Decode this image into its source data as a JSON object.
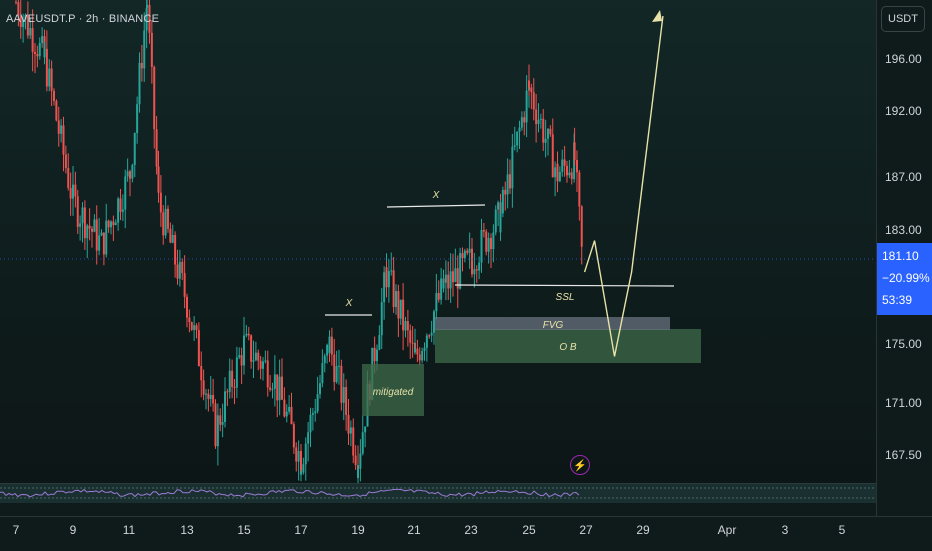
{
  "header": {
    "symbol_line": "AAVEUSDT.P · 2h · BINANCE"
  },
  "price_axis": {
    "currency": "USDT",
    "ticks": [
      "196.00",
      "192.00",
      "187.00",
      "183.00",
      "175.00",
      "171.00",
      "167.50"
    ],
    "last_price": {
      "price": "181.10",
      "change": "−20.99%",
      "countdown": "53:39"
    }
  },
  "time_axis": {
    "ticks": [
      "7",
      "9",
      "11",
      "13",
      "15",
      "17",
      "19",
      "21",
      "23",
      "25",
      "27",
      "29",
      "Apr",
      "3",
      "5"
    ]
  },
  "annotations": {
    "x_high_left": "X",
    "x_high_right": "X",
    "ssl": "SSL",
    "fvg": "FVG",
    "ob": "O B",
    "mitigated": "mitigated"
  },
  "icons": {
    "alert": "lightning-bolt-icon"
  },
  "colors": {
    "bull": "#26a69a",
    "bear": "#ef5350",
    "last_price": "#2962ff",
    "projection": "#e6e2a8",
    "zone_green": "#3d6b4a",
    "zone_gray": "#5a6070"
  },
  "chart_data": {
    "type": "candlestick",
    "symbol": "AAVEUSDT.P",
    "interval": "2h",
    "exchange": "BINANCE",
    "last_price": 181.1,
    "change_pct": -20.99,
    "y_ticks": [
      196.0,
      192.0,
      187.0,
      183.0,
      175.0,
      171.0,
      167.5
    ],
    "x_ticks": [
      "7",
      "9",
      "11",
      "13",
      "15",
      "17",
      "19",
      "21",
      "23",
      "25",
      "27",
      "29",
      "Apr",
      "3",
      "5"
    ],
    "swing_path": [
      [
        7,
        200
      ],
      [
        8,
        196
      ],
      [
        9,
        186
      ],
      [
        10,
        183
      ],
      [
        11,
        188
      ],
      [
        11.6,
        200
      ],
      [
        12,
        186
      ],
      [
        13,
        179
      ],
      [
        14,
        170
      ],
      [
        15,
        176
      ],
      [
        16,
        174
      ],
      [
        17,
        168
      ],
      [
        18,
        176
      ],
      [
        19,
        168
      ],
      [
        20,
        181
      ],
      [
        21,
        175
      ],
      [
        22,
        180
      ],
      [
        23,
        182
      ],
      [
        24,
        185
      ],
      [
        25,
        194
      ],
      [
        26,
        188
      ],
      [
        26.6,
        189
      ],
      [
        26.9,
        181.1
      ]
    ],
    "levels": {
      "x_high_left": 176.3,
      "x_high_right": 184.7,
      "ssl": 179.6
    },
    "zones": {
      "mitigated": [
        171.0,
        174.9
      ],
      "fvg": [
        176.1,
        177.0
      ],
      "ob": [
        174.0,
        176.6
      ]
    },
    "projection": [
      [
        26.95,
        181.1
      ],
      [
        27.3,
        183.3
      ],
      [
        28.0,
        175.2
      ],
      [
        28.6,
        181.1
      ],
      [
        29.7,
        199.0
      ]
    ]
  }
}
